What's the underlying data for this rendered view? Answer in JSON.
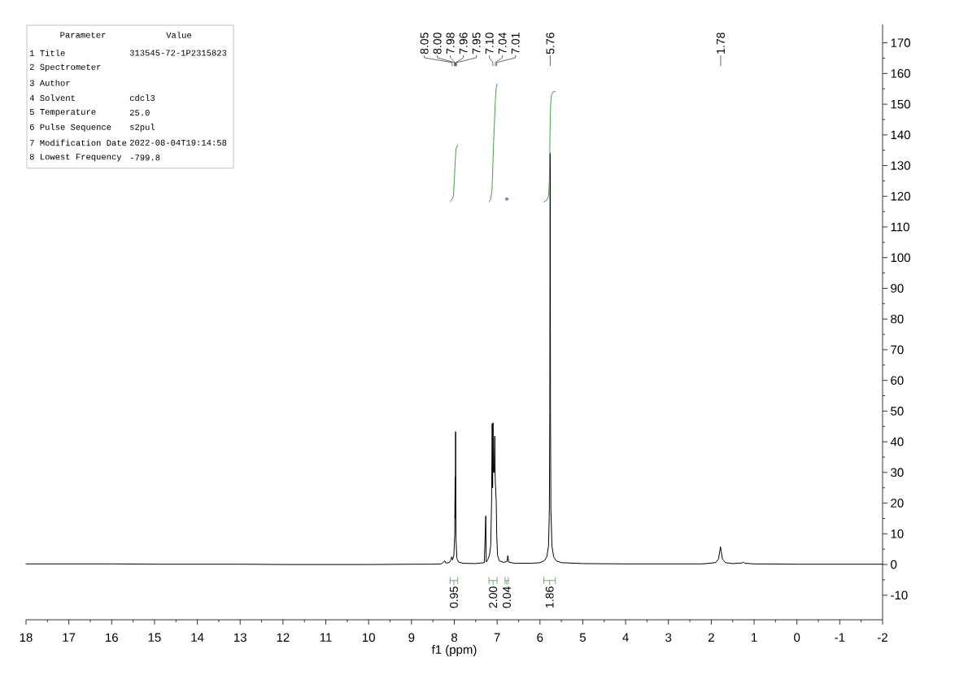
{
  "chart_data": [
    {
      "type": "line",
      "xlabel": "f1 (ppm)",
      "xlim": [
        18,
        -2
      ],
      "xticks": [
        18,
        17,
        16,
        15,
        14,
        13,
        12,
        11,
        10,
        9,
        8,
        7,
        6,
        5,
        4,
        3,
        2,
        1,
        0,
        -1,
        -2
      ],
      "ylim": [
        -18,
        176
      ],
      "yticks": [
        -10,
        0,
        10,
        20,
        30,
        40,
        50,
        60,
        70,
        80,
        90,
        100,
        110,
        120,
        130,
        140,
        150,
        160,
        170
      ],
      "series": [
        {
          "color": "#000000",
          "x": [
            18,
            17,
            16,
            15,
            14,
            13,
            12,
            11,
            10,
            9,
            8.5,
            8.3,
            8.22,
            8.2,
            8.12,
            8.08,
            8.06,
            8.04,
            8.01,
            7.99,
            7.98,
            7.975,
            7.97,
            7.965,
            7.96,
            7.94,
            7.9,
            7.8,
            7.5,
            7.3,
            7.265,
            7.255,
            7.22,
            7.18,
            7.15,
            7.13,
            7.115,
            7.105,
            7.095,
            7.085,
            7.07,
            7.055,
            7.045,
            7.035,
            7.02,
            7.01,
            6.99,
            6.95,
            6.85,
            6.77,
            6.75,
            6.73,
            6.6,
            6.2,
            6.0,
            5.9,
            5.84,
            5.8,
            5.78,
            5.77,
            5.762,
            5.754,
            5.745,
            5.72,
            5.68,
            5.62,
            5.5,
            5.0,
            4,
            3,
            2.2,
            1.9,
            1.83,
            1.8,
            1.785,
            1.77,
            1.74,
            1.67,
            1.5,
            1.28,
            1.25,
            1.22,
            1.0,
            0,
            -1,
            -2
          ],
          "values": [
            0.2,
            0.2,
            0.2,
            0.1,
            0.1,
            0.1,
            0,
            0,
            0,
            0.1,
            0.1,
            0.2,
            1.2,
            0.5,
            0.6,
            1.5,
            2.5,
            1.5,
            3,
            10,
            28.5,
            15,
            43.3,
            20,
            8,
            2,
            0.8,
            0.4,
            0.3,
            0.6,
            15.8,
            0.8,
            1.5,
            3,
            6,
            20,
            45.9,
            25,
            46.2,
            30,
            30,
            41.8,
            28,
            25,
            20,
            10,
            3,
            1.2,
            0.7,
            1,
            2.9,
            0.8,
            0.4,
            0.4,
            0.6,
            1.2,
            2.5,
            6,
            18,
            50,
            134,
            50,
            18,
            6,
            2.5,
            1.2,
            0.6,
            0.3,
            0.2,
            0.2,
            0.2,
            0.6,
            1.8,
            4.5,
            5.8,
            4.5,
            1.8,
            0.6,
            0.3,
            0.5,
            0.8,
            0.4,
            0.2,
            0.1,
            0.1,
            0.1
          ]
        },
        {
          "color": "#4a9e4a",
          "x": [
            8.1,
            8.06,
            8.02,
            8.0,
            7.98,
            7.96,
            7.92,
            7.5,
            7.19,
            7.15,
            7.12,
            7.1,
            7.08,
            7.06,
            7.04,
            7.02,
            7.0,
            6.3,
            5.91,
            5.85,
            5.8,
            5.78,
            5.77,
            5.76,
            5.75,
            5.73,
            5.69,
            5.64
          ],
          "values": [
            118.2,
            118.8,
            120,
            125,
            131,
            135.5,
            136.6,
            null,
            118.2,
            119,
            122,
            130,
            138,
            145,
            152,
            155.5,
            156.6,
            null,
            118.2,
            118.6,
            120,
            125,
            135,
            145,
            150,
            153,
            154,
            154.2
          ]
        },
        {
          "type": "scatter",
          "color": "#5aa85a",
          "x": [
            6.775
          ],
          "values": [
            119.1
          ]
        }
      ],
      "annotations": [
        {
          "text": "8.05",
          "x": 8.05
        },
        {
          "text": "8.00",
          "x": 8.0
        },
        {
          "text": "7.98",
          "x": 7.98
        },
        {
          "text": "7.96",
          "x": 7.96
        },
        {
          "text": "7.95",
          "x": 7.95
        },
        {
          "text": "7.10",
          "x": 7.1
        },
        {
          "text": "7.04",
          "x": 7.04
        },
        {
          "text": "7.01",
          "x": 7.01
        },
        {
          "text": "5.76",
          "x": 5.76
        },
        {
          "text": "1.78",
          "x": 1.78
        },
        "0.95",
        "2.00",
        "0.04",
        "1.86"
      ]
    },
    {
      "type": "other",
      "annotations": [
        "Parameter",
        "Value",
        "1 Title",
        "313545-72-1P2315823",
        "2 Spectrometer",
        null,
        "3 Author",
        null,
        "4 Solvent",
        "cdcl3",
        "5 Temperature",
        "25.0",
        "6 Pulse Sequence",
        "s2pul",
        "7 Modification Date",
        "2022-08-04T19:14:58",
        "8 Lowest Frequency",
        "-799.8"
      ]
    }
  ]
}
